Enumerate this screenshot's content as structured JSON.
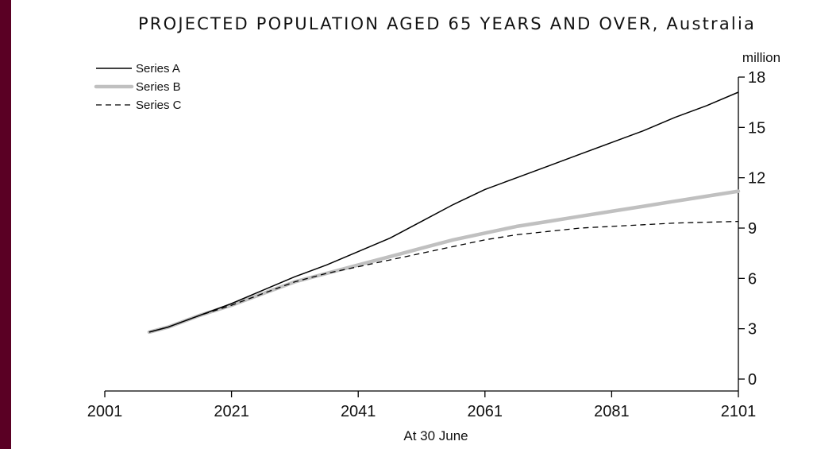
{
  "chart_data": {
    "type": "line",
    "title": "PROJECTED POPULATION AGED 65 YEARS AND OVER, Australia",
    "xlabel": "At 30 June",
    "ylabel": "million",
    "xlim": [
      2001,
      2101
    ],
    "ylim": [
      0,
      18
    ],
    "xticks": [
      "2001",
      "2021",
      "2041",
      "2061",
      "2081",
      "2101"
    ],
    "yticks": [
      "0",
      "3",
      "6",
      "9",
      "12",
      "15",
      "18"
    ],
    "grid": false,
    "legend_position": "top-left",
    "x": [
      2008,
      2011,
      2016,
      2021,
      2026,
      2031,
      2036,
      2041,
      2046,
      2051,
      2056,
      2061,
      2066,
      2071,
      2076,
      2081,
      2086,
      2091,
      2096,
      2101
    ],
    "series": [
      {
        "name": "Series A",
        "style": "solid",
        "color": "#000000",
        "values": [
          2.8,
          3.1,
          3.8,
          4.5,
          5.3,
          6.1,
          6.8,
          7.6,
          8.4,
          9.4,
          10.4,
          11.3,
          12.0,
          12.7,
          13.4,
          14.1,
          14.8,
          15.6,
          16.3,
          17.1
        ]
      },
      {
        "name": "Series B",
        "style": "thick-grey",
        "color": "#c0c0c0",
        "values": [
          2.8,
          3.1,
          3.8,
          4.4,
          5.1,
          5.8,
          6.3,
          6.8,
          7.3,
          7.8,
          8.3,
          8.7,
          9.1,
          9.4,
          9.7,
          10.0,
          10.3,
          10.6,
          10.9,
          11.2
        ]
      },
      {
        "name": "Series C",
        "style": "dashed",
        "color": "#000000",
        "values": [
          2.8,
          3.1,
          3.8,
          4.4,
          5.1,
          5.8,
          6.3,
          6.7,
          7.1,
          7.5,
          7.9,
          8.3,
          8.6,
          8.8,
          9.0,
          9.1,
          9.2,
          9.3,
          9.35,
          9.4
        ]
      }
    ]
  }
}
